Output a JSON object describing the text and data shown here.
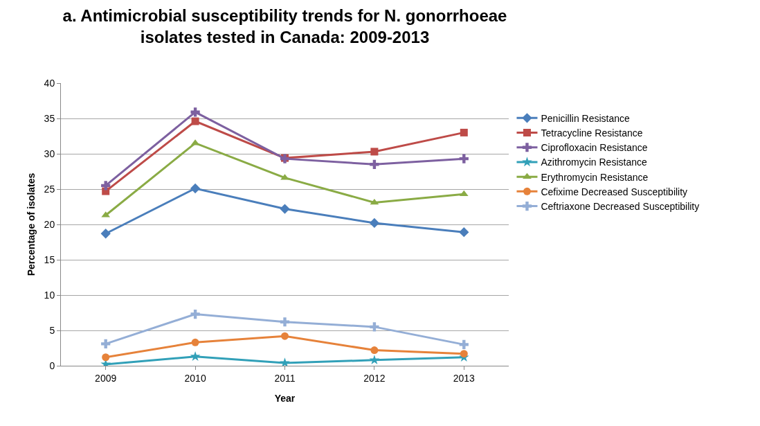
{
  "chart_data": {
    "type": "line",
    "title": "a. Antimicrobial susceptibility trends for N. gonorrhoeae\nisolates tested in Canada: 2009-2013",
    "xlabel": "Year",
    "ylabel": "Percentage of isolates",
    "categories": [
      "2009",
      "2010",
      "2011",
      "2012",
      "2013"
    ],
    "series": [
      {
        "name": "Penicillin Resistance",
        "color": "#4a7ebb",
        "marker": "diamond",
        "values": [
          18.7,
          25.1,
          22.2,
          20.2,
          18.9
        ]
      },
      {
        "name": "Tetracycline Resistance",
        "color": "#be4b48",
        "marker": "square",
        "values": [
          24.7,
          34.6,
          29.4,
          30.3,
          33.0
        ]
      },
      {
        "name": "Ciprofloxacin Resistance",
        "color": "#7d60a0",
        "marker": "cross",
        "values": [
          25.5,
          35.9,
          29.3,
          28.5,
          29.3
        ]
      },
      {
        "name": "Azithromycin Resistance",
        "color": "#31a0b8",
        "marker": "star",
        "values": [
          0.2,
          1.3,
          0.4,
          0.8,
          1.2
        ]
      },
      {
        "name": "Erythromycin Resistance",
        "color": "#8aab45",
        "marker": "triangle",
        "values": [
          21.3,
          31.5,
          26.6,
          23.1,
          24.3
        ]
      },
      {
        "name": "Cefixime Decreased Susceptibility",
        "color": "#e6823a",
        "marker": "circle",
        "values": [
          1.2,
          3.3,
          4.2,
          2.2,
          1.7
        ]
      },
      {
        "name": "Ceftriaxone Decreased Susceptibility",
        "color": "#94aed6",
        "marker": "cross",
        "values": [
          3.1,
          7.3,
          6.2,
          5.5,
          3.0
        ]
      }
    ],
    "ylim": [
      0,
      40
    ],
    "yticks": [
      0,
      5,
      10,
      15,
      20,
      25,
      30,
      35,
      40
    ],
    "grid": "y",
    "legend": "right",
    "line_style": "solid"
  }
}
